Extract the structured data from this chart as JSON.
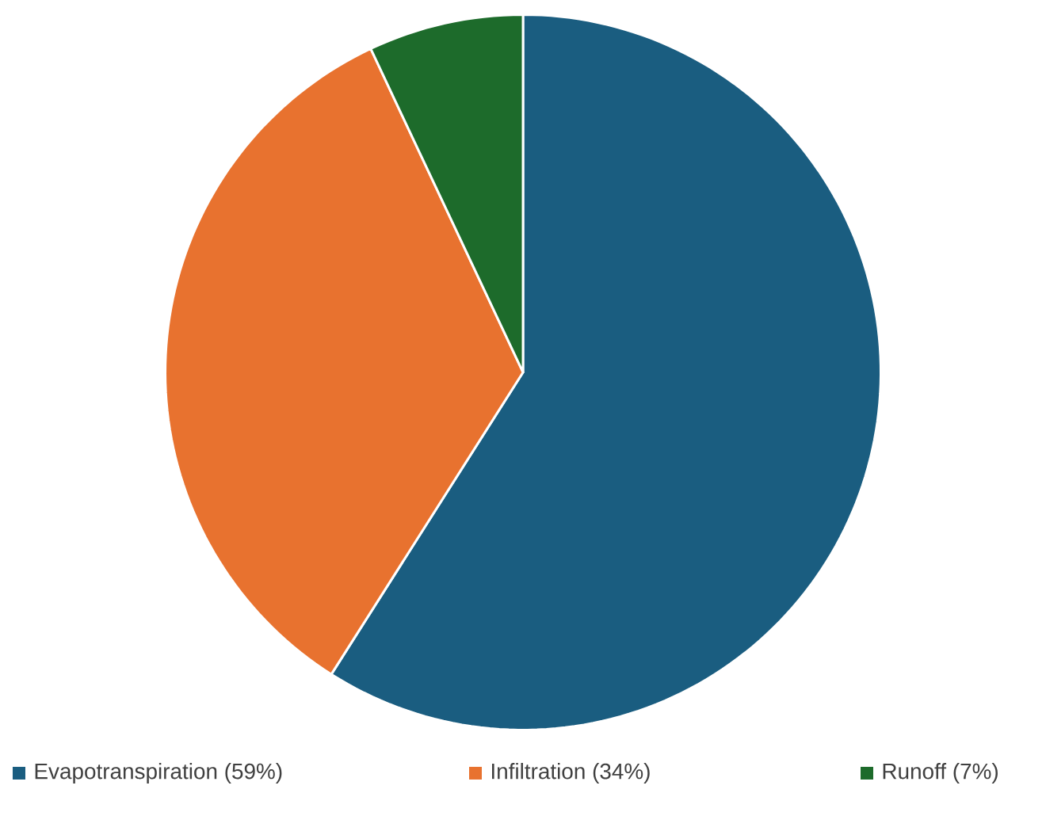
{
  "chart_data": {
    "type": "pie",
    "categories": [
      "Evapotranspiration (59%)",
      "Infiltration (34%)",
      "Runoff (7%)"
    ],
    "values": [
      59,
      34,
      7
    ],
    "colors": [
      "#1a5d80",
      "#e8722f",
      "#1d6b2b"
    ],
    "legend": "bottom"
  }
}
